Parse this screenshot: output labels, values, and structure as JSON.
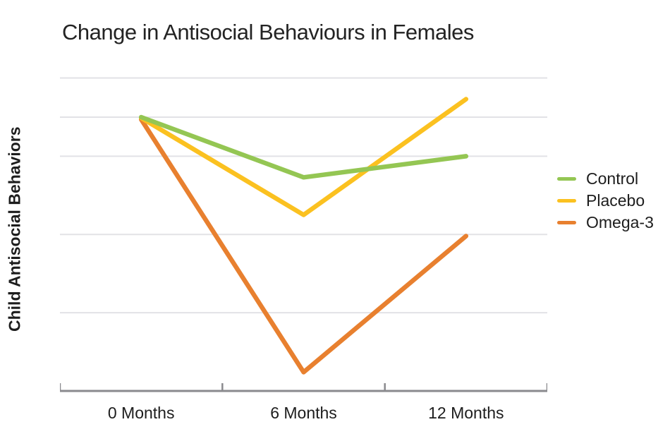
{
  "chart_data": {
    "type": "line",
    "title": "Change in Antisocial Behaviours in Females",
    "ylabel": "Child Antisocial Behaviors",
    "xlabel": "",
    "categories": [
      "0 Months",
      "6 Months",
      "12 Months"
    ],
    "series": [
      {
        "name": "Control",
        "color": "#94C653",
        "values": [
          3.5,
          2.73,
          3.0
        ]
      },
      {
        "name": "Placebo",
        "color": "#FBC120",
        "values": [
          3.49,
          2.25,
          3.73
        ]
      },
      {
        "name": "Omega-3",
        "color": "#E8802F",
        "values": [
          3.47,
          0.24,
          1.98
        ]
      }
    ],
    "ylim": [
      0,
      4.14
    ],
    "gridline_values": [
      1,
      2,
      3,
      3.5,
      4
    ],
    "grid": "horizontal-only",
    "y_tick_labels_visible": false,
    "legend_position": "right-middle",
    "line_width": 6.5,
    "axis_color": "#8A8A8E",
    "gridline_color": "#E2E2E6",
    "text_color": "#1d1d1d"
  }
}
